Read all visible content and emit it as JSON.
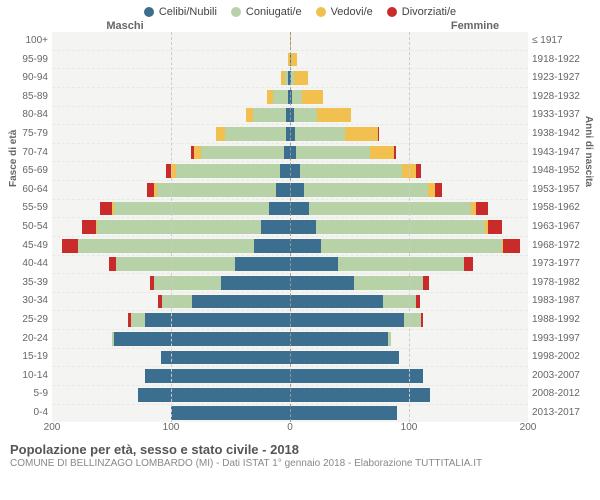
{
  "legend": [
    {
      "label": "Celibi/Nubili",
      "color": "#3b6e8f"
    },
    {
      "label": "Coniugati/e",
      "color": "#b7d2a6"
    },
    {
      "label": "Vedovi/e",
      "color": "#f2c04e"
    },
    {
      "label": "Divorziati/e",
      "color": "#c92a2a"
    }
  ],
  "gender": {
    "male": "Maschi",
    "female": "Femmine"
  },
  "axis": {
    "left_title": "Fasce di età",
    "right_title": "Anni di nascita",
    "x_ticks": [
      200,
      100,
      0,
      100,
      200
    ],
    "x_max": 200
  },
  "age_labels": [
    "100+",
    "95-99",
    "90-94",
    "85-89",
    "80-84",
    "75-79",
    "70-74",
    "65-69",
    "60-64",
    "55-59",
    "50-54",
    "45-49",
    "40-44",
    "35-39",
    "30-34",
    "25-29",
    "20-24",
    "15-19",
    "10-14",
    "5-9",
    "0-4"
  ],
  "birth_labels": [
    "≤ 1917",
    "1918-1922",
    "1923-1927",
    "1928-1932",
    "1933-1937",
    "1938-1942",
    "1943-1947",
    "1948-1952",
    "1953-1957",
    "1958-1962",
    "1963-1967",
    "1968-1972",
    "1973-1977",
    "1978-1982",
    "1983-1987",
    "1988-1992",
    "1993-1997",
    "1998-2002",
    "2003-2007",
    "2008-2012",
    "2013-2017"
  ],
  "data": {
    "male": [
      [
        0,
        0,
        0,
        0
      ],
      [
        0,
        0,
        2,
        0
      ],
      [
        2,
        2,
        4,
        0
      ],
      [
        2,
        12,
        5,
        0
      ],
      [
        3,
        28,
        6,
        0
      ],
      [
        3,
        52,
        7,
        0
      ],
      [
        5,
        70,
        6,
        2
      ],
      [
        8,
        88,
        4,
        4
      ],
      [
        12,
        100,
        2,
        6
      ],
      [
        18,
        130,
        2,
        10
      ],
      [
        24,
        138,
        1,
        12
      ],
      [
        30,
        148,
        0,
        14
      ],
      [
        46,
        100,
        0,
        6
      ],
      [
        58,
        56,
        0,
        4
      ],
      [
        82,
        26,
        0,
        3
      ],
      [
        122,
        12,
        0,
        2
      ],
      [
        148,
        2,
        0,
        0
      ],
      [
        108,
        0,
        0,
        0
      ],
      [
        122,
        0,
        0,
        0
      ],
      [
        128,
        0,
        0,
        0
      ],
      [
        100,
        0,
        0,
        0
      ]
    ],
    "female": [
      [
        0,
        0,
        1,
        0
      ],
      [
        1,
        0,
        5,
        0
      ],
      [
        1,
        2,
        12,
        0
      ],
      [
        2,
        8,
        18,
        0
      ],
      [
        3,
        20,
        28,
        0
      ],
      [
        4,
        42,
        28,
        1
      ],
      [
        5,
        62,
        20,
        2
      ],
      [
        8,
        86,
        12,
        4
      ],
      [
        12,
        104,
        6,
        6
      ],
      [
        16,
        136,
        4,
        10
      ],
      [
        22,
        142,
        2,
        12
      ],
      [
        26,
        152,
        1,
        14
      ],
      [
        40,
        106,
        0,
        8
      ],
      [
        54,
        58,
        0,
        5
      ],
      [
        78,
        28,
        0,
        3
      ],
      [
        96,
        14,
        0,
        2
      ],
      [
        82,
        3,
        0,
        0
      ],
      [
        92,
        0,
        0,
        0
      ],
      [
        112,
        0,
        0,
        0
      ],
      [
        118,
        0,
        0,
        0
      ],
      [
        90,
        0,
        0,
        0
      ]
    ]
  },
  "colors": {
    "celibi": "#3b6e8f",
    "coniugati": "#b7d2a6",
    "vedovi": "#f2c04e",
    "divorziati": "#c92a2a",
    "plot_bg": "#f4f4f2",
    "grid": "#cccccc"
  },
  "title": "Popolazione per età, sesso e stato civile - 2018",
  "subtitle": "COMUNE DI BELLINZAGO LOMBARDO (MI) - Dati ISTAT 1° gennaio 2018 - Elaborazione TUTTITALIA.IT"
}
